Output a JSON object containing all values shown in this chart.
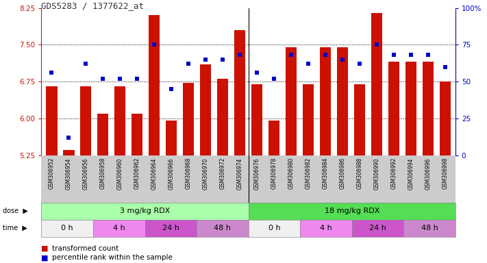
{
  "title": "GDS5283 / 1377622_at",
  "samples": [
    "GSM306952",
    "GSM306954",
    "GSM306956",
    "GSM306958",
    "GSM306960",
    "GSM306962",
    "GSM306964",
    "GSM306966",
    "GSM306968",
    "GSM306970",
    "GSM306972",
    "GSM306974",
    "GSM306976",
    "GSM306978",
    "GSM306980",
    "GSM306982",
    "GSM306984",
    "GSM306986",
    "GSM306988",
    "GSM306990",
    "GSM306992",
    "GSM306994",
    "GSM306996",
    "GSM306998"
  ],
  "bar_values": [
    6.65,
    5.35,
    6.65,
    6.1,
    6.65,
    6.1,
    8.1,
    5.95,
    6.72,
    7.1,
    6.8,
    7.8,
    6.7,
    5.95,
    7.45,
    6.7,
    7.45,
    7.45,
    6.7,
    8.15,
    7.15,
    7.15,
    7.15,
    6.75
  ],
  "blue_values": [
    56,
    12,
    62,
    52,
    52,
    52,
    75,
    45,
    62,
    65,
    65,
    68,
    56,
    52,
    68,
    62,
    68,
    65,
    62,
    75,
    68,
    68,
    68,
    60
  ],
  "ylim_left": [
    5.25,
    8.25
  ],
  "ylim_right": [
    0,
    100
  ],
  "yticks_left": [
    5.25,
    6.0,
    6.75,
    7.5,
    8.25
  ],
  "yticks_right": [
    0,
    25,
    50,
    75,
    100
  ],
  "dose_groups": [
    {
      "label": "3 mg/kg RDX",
      "start": 0,
      "end": 12,
      "color": "#aaffaa"
    },
    {
      "label": "18 mg/kg RDX",
      "start": 12,
      "end": 24,
      "color": "#55dd55"
    }
  ],
  "time_colors": [
    "#f0f0f0",
    "#ee88ee",
    "#cc55cc",
    "#cc88cc"
  ],
  "time_labels": [
    "0 h",
    "4 h",
    "24 h",
    "48 h"
  ],
  "bar_color": "#cc1100",
  "blue_color": "#0000cc",
  "bg_xtick": "#cccccc",
  "left_axis_color": "#cc1100",
  "right_axis_color": "#0000cc",
  "right_tick_labels": [
    "0",
    "25",
    "50",
    "75",
    "100%"
  ]
}
